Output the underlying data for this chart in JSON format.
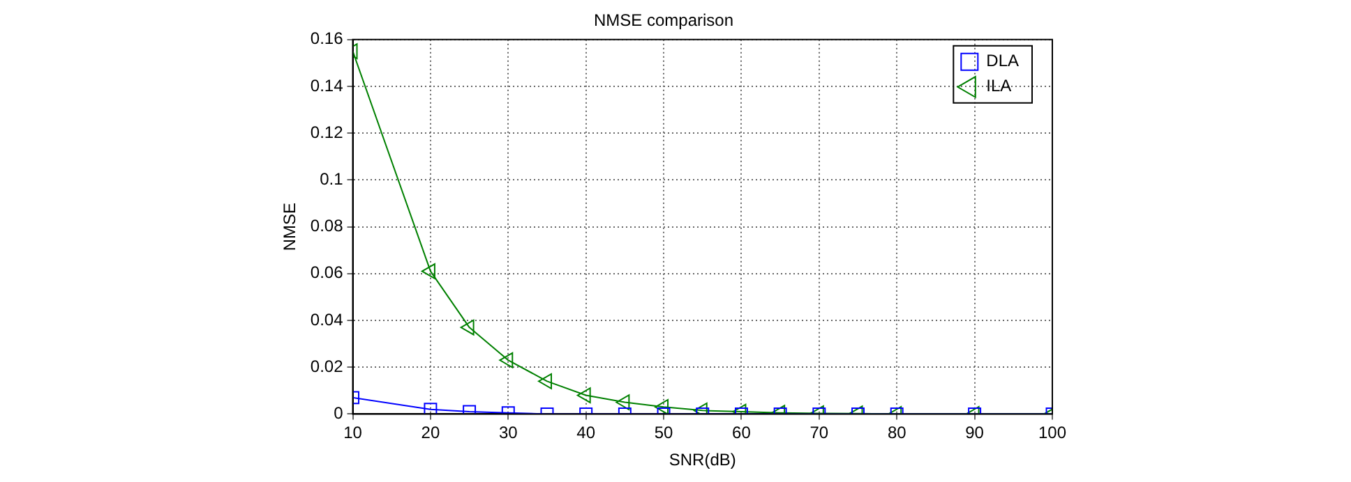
{
  "chart_data": {
    "type": "line",
    "title": "NMSE comparison",
    "xlabel": "SNR(dB)",
    "ylabel": "NMSE",
    "x": [
      10,
      20,
      25,
      30,
      35,
      40,
      45,
      50,
      55,
      60,
      65,
      70,
      75,
      80,
      90,
      100
    ],
    "series": [
      {
        "name": "DLA",
        "color": "#0000ff",
        "marker": "square",
        "values": [
          0.007,
          0.002,
          0.001,
          0.0005,
          0,
          0,
          0,
          0,
          0,
          0,
          0,
          0,
          0,
          0,
          0,
          0
        ]
      },
      {
        "name": "ILA",
        "color": "#008000",
        "marker": "triangle",
        "values": [
          0.155,
          0.061,
          0.037,
          0.023,
          0.014,
          0.008,
          0.005,
          0.003,
          0.0015,
          0.001,
          0.0005,
          0.0003,
          0.0002,
          0,
          0,
          0
        ]
      }
    ],
    "xlim": [
      10,
      100
    ],
    "xticks": [
      10,
      20,
      30,
      40,
      50,
      60,
      70,
      80,
      90,
      100
    ],
    "ylim": [
      0,
      0.16
    ],
    "yticks": [
      0,
      0.02,
      0.04,
      0.06,
      0.08,
      {
        "value": 0.1,
        "label": "0.1"
      },
      0.12,
      0.14,
      0.16
    ],
    "grid": true,
    "legend": "top right",
    "line_style": "solid"
  }
}
